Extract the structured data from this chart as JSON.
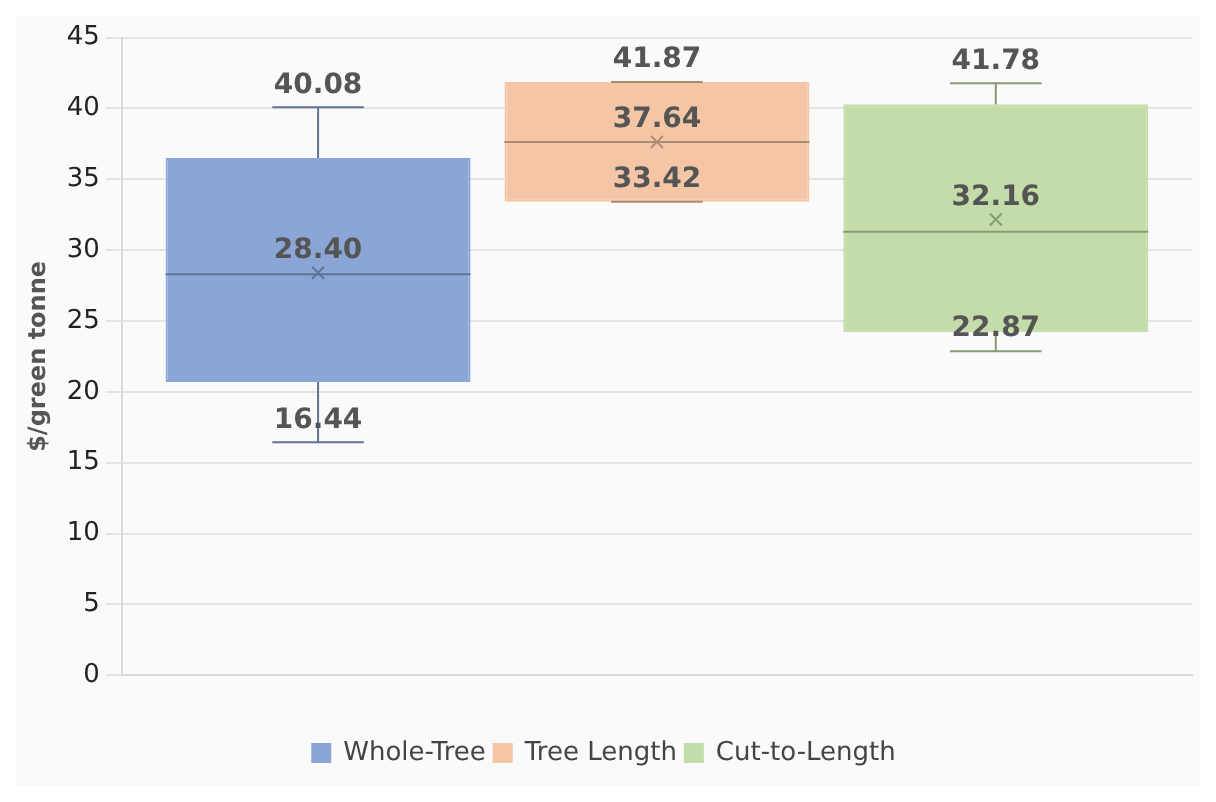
{
  "chart_data": {
    "type": "box",
    "ylabel": "$/green tonne",
    "categories": [
      null
    ],
    "ylim": [
      0,
      45
    ],
    "yticks": [
      0,
      5,
      10,
      15,
      20,
      25,
      30,
      35,
      40,
      45
    ],
    "grid": "y",
    "legend": "bottom",
    "series": [
      {
        "name": "Whole-Tree",
        "color": "#8aa5d6",
        "boxes": [
          {
            "low": 16.44,
            "q1": 20.7,
            "median": 28.3,
            "q3": 36.5,
            "high": 40.08,
            "mean": 28.4
          }
        ]
      },
      {
        "name": "Tree Length",
        "color": "#f5c6a5",
        "boxes": [
          {
            "low": 33.42,
            "q1": 33.42,
            "median": 37.64,
            "q3": 41.87,
            "high": 41.87,
            "mean": 37.64
          }
        ]
      },
      {
        "name": "Cut-to-Length",
        "color": "#c3dcaa",
        "boxes": [
          {
            "low": 22.87,
            "q1": 24.2,
            "median": 31.3,
            "q3": 40.3,
            "high": 41.78,
            "mean": 32.16
          }
        ]
      }
    ],
    "annotations": [
      {
        "text": "40.08",
        "y": 40.08
      },
      {
        "text": "28.40",
        "y": 28.4
      },
      {
        "text": "16.44",
        "y": 16.44
      },
      {
        "text": "41.87",
        "y": 41.87
      },
      {
        "text": "37.64",
        "y": 37.64
      },
      {
        "text": "33.42",
        "y": 33.42
      },
      {
        "text": "41.78",
        "y": 41.78
      },
      "32.16",
      {
        "text": "22.87",
        "y": 22.87
      }
    ]
  }
}
